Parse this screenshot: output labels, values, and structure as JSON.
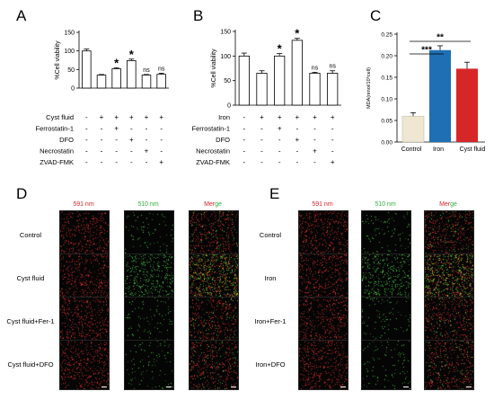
{
  "panels": {
    "A": "A",
    "B": "B",
    "C": "C",
    "D": "D",
    "E": "E"
  },
  "colors": {
    "bar_fill": "#ffffff",
    "control": "#efe7d2",
    "iron": "#1f6fb4",
    "cyst": "#d62728",
    "red_channel": "#d2262a",
    "green_channel": "#2fae3a",
    "merge_e": "#e6a500"
  },
  "chart_data": [
    {
      "type": "bar",
      "panel": "A",
      "ylabel": "%Cell viability",
      "ylim": [
        0,
        150
      ],
      "yticks": [
        0,
        50,
        100,
        150
      ],
      "values": [
        100,
        35,
        52,
        74,
        35,
        37
      ],
      "errors": [
        5,
        1.5,
        3,
        4,
        1.5,
        3
      ],
      "sig": [
        "",
        "",
        "*",
        "*",
        "ns",
        "ns"
      ],
      "rows": [
        {
          "name": "Cyst fluid",
          "signs": [
            "-",
            "+",
            "+",
            "+",
            "+",
            "+"
          ]
        },
        {
          "name": "Ferrostatin-1",
          "signs": [
            "-",
            "-",
            "+",
            "-",
            "-",
            "-"
          ]
        },
        {
          "name": "DFO",
          "signs": [
            "-",
            "-",
            "-",
            "+",
            "-",
            "-"
          ]
        },
        {
          "name": "Necrostatin",
          "signs": [
            "-",
            "-",
            "-",
            "-",
            "+",
            "-"
          ]
        },
        {
          "name": "ZVAD-FMK",
          "signs": [
            "-",
            "-",
            "-",
            "-",
            "-",
            "+"
          ]
        }
      ]
    },
    {
      "type": "bar",
      "panel": "B",
      "ylabel": "%Cell viability",
      "ylim": [
        0,
        150
      ],
      "yticks": [
        0,
        50,
        100,
        150
      ],
      "values": [
        100,
        65,
        100,
        132,
        65,
        65
      ],
      "errors": [
        6,
        5,
        5,
        4,
        2,
        5
      ],
      "sig": [
        "",
        "",
        "*",
        "*",
        "ns",
        "ns"
      ],
      "rows": [
        {
          "name": "Iron",
          "signs": [
            "-",
            "+",
            "+",
            "+",
            "+",
            "+"
          ]
        },
        {
          "name": "Ferrostatin-1",
          "signs": [
            "-",
            "-",
            "+",
            "-",
            "-",
            "-"
          ]
        },
        {
          "name": "DFO",
          "signs": [
            "-",
            "-",
            "-",
            "+",
            "-",
            "-"
          ]
        },
        {
          "name": "Necrostatin",
          "signs": [
            "-",
            "-",
            "-",
            "-",
            "+",
            "-"
          ]
        },
        {
          "name": "ZVAD-FMK",
          "signs": [
            "-",
            "-",
            "-",
            "-",
            "-",
            "+"
          ]
        }
      ]
    },
    {
      "type": "bar",
      "panel": "C",
      "ylabel": "MDA(nmol/10⁶cell)",
      "ylim": [
        0,
        0.25
      ],
      "yticks": [
        "0.00",
        "0.05",
        "0.10",
        "0.15",
        "0.20",
        "0.25"
      ],
      "categories": [
        "Control",
        "Iron",
        "Cyst fluid"
      ],
      "values": [
        0.06,
        0.213,
        0.17
      ],
      "errors": [
        0.008,
        0.01,
        0.015
      ],
      "comparisons": [
        {
          "from": 0,
          "to": 1,
          "label": "***"
        },
        {
          "from": 0,
          "to": 2,
          "label": "**"
        }
      ]
    }
  ],
  "microscopy": {
    "D": {
      "columns": [
        {
          "text": "591 nm",
          "color": "#d2262a"
        },
        {
          "text": "510 nm",
          "color": "#2fae3a"
        }
      ],
      "merge": {
        "prefix": "Mer",
        "suffix": "ge"
      },
      "rows": [
        "Control",
        "Cyst fluid",
        "Cyst fluid+Fer-1",
        "Cyst fluid+DFO"
      ]
    },
    "E": {
      "columns": [
        {
          "text": "591 nm",
          "color": "#d2262a"
        },
        {
          "text": "510 nm",
          "color": "#2fae3a"
        }
      ],
      "merge": {
        "prefix": "Mer",
        "suffix": "ge"
      },
      "rows": [
        "Control",
        "Iron",
        "Iron+Fer-1",
        "Iron+DFO"
      ]
    }
  }
}
